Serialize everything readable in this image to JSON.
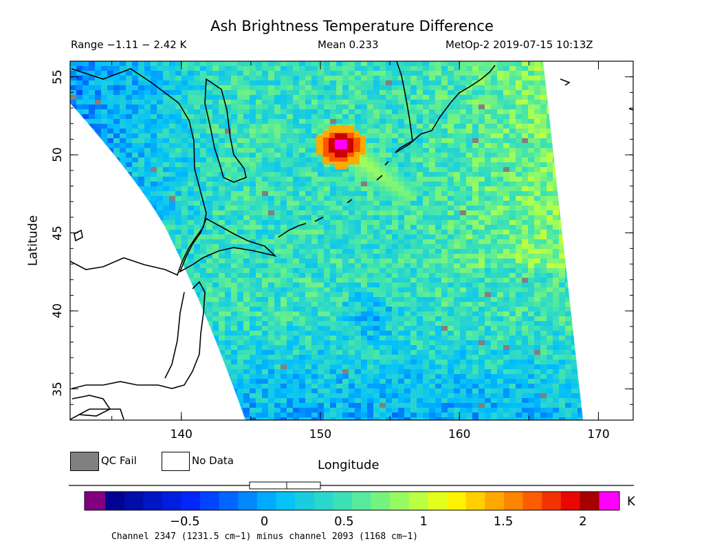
{
  "header": {
    "title": "Ash Brightness Temperature Difference",
    "range": "Range −1.11 − 2.42 K",
    "mean": "Mean 0.233",
    "satellite": "MetOp-2 2019-07-15 10:13Z"
  },
  "axes": {
    "xlabel": "Longitude",
    "ylabel": "Latitude",
    "lon_ticks": [
      "140",
      "150",
      "160",
      "170"
    ],
    "lat_ticks": [
      "35",
      "40",
      "45",
      "50",
      "55"
    ],
    "lon_range": [
      132,
      172.5
    ],
    "lat_range": [
      33,
      56
    ]
  },
  "legend": {
    "qc_fail": "QC Fail",
    "no_data": "No Data",
    "qc_color": "#808080"
  },
  "colorbar": {
    "unit": "K",
    "ticks": [
      "−0.5",
      "0",
      "0.5",
      "1",
      "1.5",
      "2"
    ],
    "tick_values": [
      -0.5,
      0,
      0.5,
      1,
      1.5,
      2
    ],
    "range": [
      -1.0,
      2.1
    ],
    "underflow_color": "#800080",
    "overflow_color": "#ff00ff",
    "mean_box": [
      0.233
    ]
  },
  "footer": {
    "channel": "Channel 2347 (1231.5 cm−1) minus channel 2093 (1168 cm−1)"
  },
  "map_data": {
    "background_level": 0.45,
    "ash_plume": {
      "center_lon": 151.5,
      "center_lat": 50.6,
      "peak": 2.2
    },
    "plume_tail": {
      "to_lon": 154.5,
      "to_lat": 48.6,
      "value": 1.0
    },
    "low_region": {
      "center_lon": 153.5,
      "center_lat": 40,
      "value": -0.2
    }
  }
}
